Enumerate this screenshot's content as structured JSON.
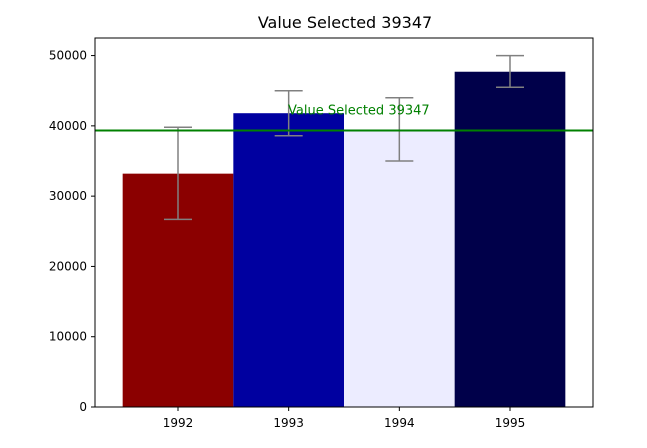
{
  "chart_data": {
    "type": "bar",
    "title": "Value Selected 39347",
    "xlabel": "",
    "ylabel": "",
    "categories": [
      "1992",
      "1993",
      "1994",
      "1995"
    ],
    "values": [
      33200,
      41800,
      39500,
      47700
    ],
    "error_low": [
      26700,
      38600,
      35000,
      45500
    ],
    "error_high": [
      39800,
      45000,
      44000,
      50000
    ],
    "bar_colors": [
      "#8b0000",
      "#0000a0",
      "#ececff",
      "#00004a"
    ],
    "error_color": "#808080",
    "reference_line": {
      "value": 39347,
      "label": "Value Selected 39347",
      "color": "#008000"
    },
    "ylim": [
      0,
      52500
    ],
    "yticks": [
      0,
      10000,
      20000,
      30000,
      40000,
      50000
    ],
    "grid": false,
    "legend": "none"
  }
}
